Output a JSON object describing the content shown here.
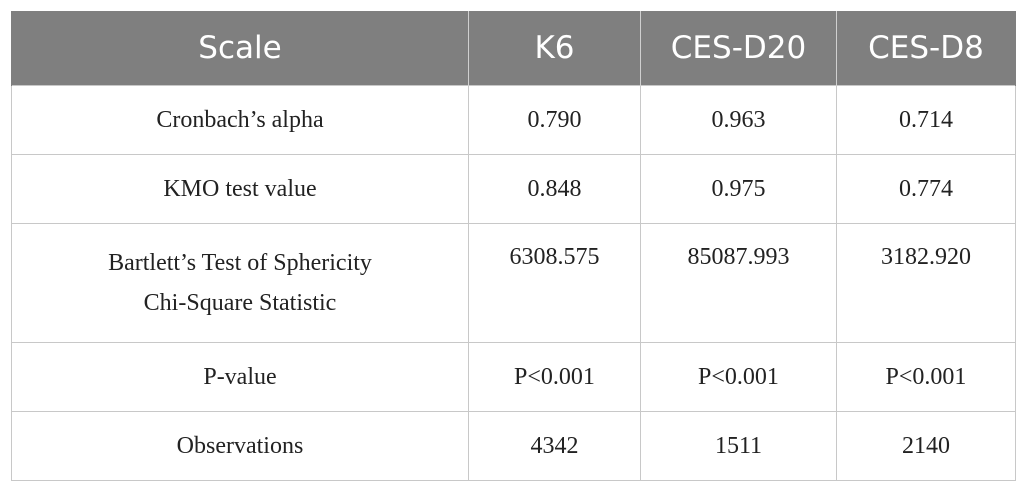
{
  "table": {
    "headers": [
      "Scale",
      "K6",
      "CES-D20",
      "CES-D8"
    ],
    "rows": [
      {
        "label_lines": [
          "Cronbach’s alpha"
        ],
        "values": [
          "0.790",
          "0.963",
          "0.714"
        ]
      },
      {
        "label_lines": [
          "KMO test value"
        ],
        "values": [
          "0.848",
          "0.975",
          "0.774"
        ]
      },
      {
        "label_lines": [
          "Bartlett’s Test of Sphericity",
          "Chi-Square Statistic"
        ],
        "values": [
          "6308.575",
          "85087.993",
          "3182.920"
        ]
      },
      {
        "label_lines": [
          "P-value"
        ],
        "values": [
          "P<0.001",
          "P<0.001",
          "P<0.001"
        ]
      },
      {
        "label_lines": [
          "Observations"
        ],
        "values": [
          "4342",
          "1511",
          "2140"
        ]
      }
    ]
  },
  "colors": {
    "header_bg": "#7f7f7f",
    "header_text": "#ffffff",
    "grid": "#c8c8c8"
  }
}
